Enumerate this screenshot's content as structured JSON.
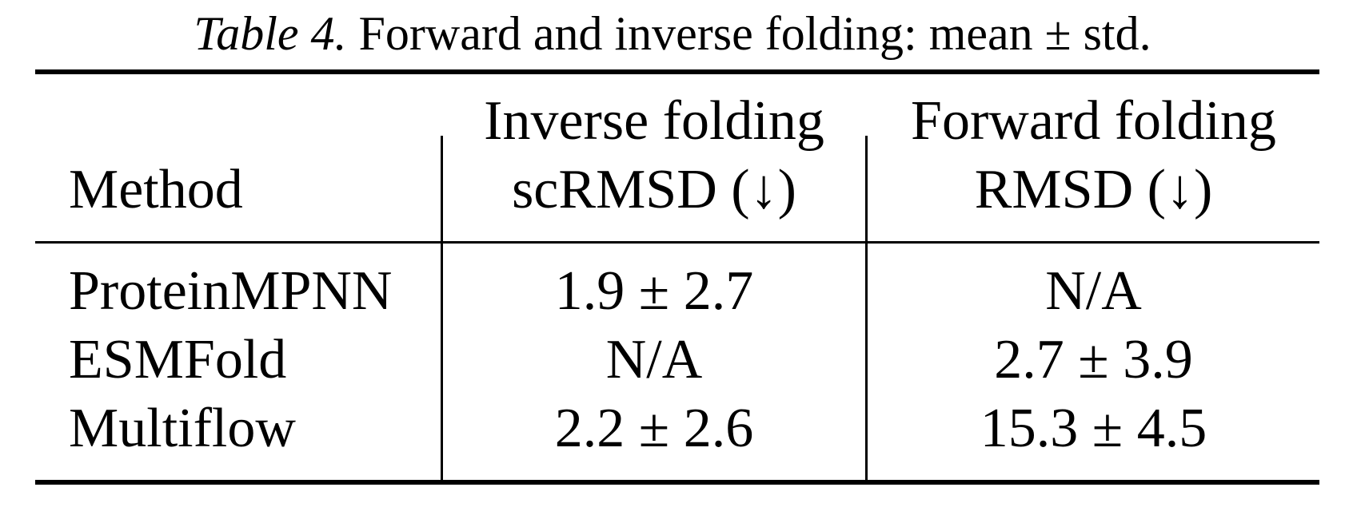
{
  "caption": {
    "label": "Table 4.",
    "text": "Forward and inverse folding: mean ± std."
  },
  "table": {
    "header": {
      "method": "Method",
      "inverse_group": "Inverse folding",
      "inverse_metric": "scRMSD (↓)",
      "forward_group": "Forward folding",
      "forward_metric": "RMSD (↓)"
    },
    "rows": [
      {
        "method": "ProteinMPNN",
        "inverse": "1.9 ± 2.7",
        "forward": "N/A"
      },
      {
        "method": "ESMFold",
        "inverse": "N/A",
        "forward": "2.7 ± 3.9"
      },
      {
        "method": "Multiflow",
        "inverse": "2.2 ± 2.6",
        "forward": "15.3 ± 4.5"
      }
    ]
  }
}
